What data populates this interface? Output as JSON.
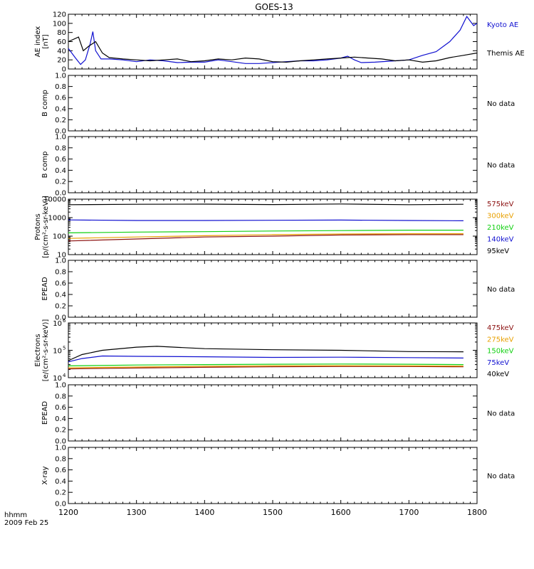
{
  "title": "GOES-13",
  "time_axis": {
    "tick_labels": [
      "1200",
      "1300",
      "1400",
      "1500",
      "1600",
      "1700",
      "1800"
    ],
    "range": [
      1200,
      1800
    ],
    "label_line1": "hhmm",
    "label_line2": "2009 Feb 25"
  },
  "colors": {
    "axes": "#000000",
    "blue": "#1010d0",
    "black": "#000000",
    "red": "#8b1010",
    "orange": "#e8a000",
    "green": "#10d010"
  },
  "chart_data": [
    {
      "type": "line",
      "ylabel": "AE index",
      "ylabel2": "[nT]",
      "ylim": [
        0,
        120
      ],
      "yticks": [
        "0",
        "20",
        "40",
        "60",
        "80",
        "100",
        "120"
      ],
      "series": [
        {
          "name": "Kyoto AE",
          "color": "#1010d0",
          "x": [
            1200,
            1210,
            1218,
            1225,
            1232,
            1236,
            1240,
            1248,
            1260,
            1280,
            1300,
            1320,
            1340,
            1360,
            1380,
            1400,
            1420,
            1440,
            1460,
            1480,
            1500,
            1520,
            1540,
            1560,
            1580,
            1600,
            1610,
            1620,
            1630,
            1650,
            1680,
            1700,
            1720,
            1740,
            1760,
            1775,
            1785,
            1795,
            1800
          ],
          "y": [
            45,
            25,
            10,
            20,
            55,
            82,
            40,
            22,
            22,
            20,
            16,
            20,
            18,
            14,
            15,
            15,
            20,
            16,
            12,
            12,
            14,
            16,
            18,
            18,
            20,
            24,
            28,
            20,
            14,
            15,
            18,
            20,
            30,
            38,
            60,
            85,
            115,
            95,
            100
          ]
        },
        {
          "name": "Themis AE",
          "color": "#000000",
          "x": [
            1200,
            1215,
            1222,
            1230,
            1240,
            1250,
            1260,
            1280,
            1300,
            1320,
            1340,
            1360,
            1380,
            1400,
            1420,
            1440,
            1460,
            1480,
            1500,
            1520,
            1540,
            1560,
            1580,
            1600,
            1620,
            1640,
            1660,
            1680,
            1700,
            1720,
            1740,
            1760,
            1780,
            1800
          ],
          "y": [
            60,
            70,
            40,
            50,
            60,
            35,
            25,
            22,
            20,
            18,
            20,
            22,
            16,
            18,
            22,
            20,
            24,
            22,
            16,
            15,
            18,
            20,
            22,
            24,
            26,
            24,
            22,
            18,
            20,
            15,
            18,
            25,
            30,
            35
          ]
        }
      ]
    },
    {
      "type": "line",
      "ylabel": "B comp",
      "ylim": [
        0,
        1
      ],
      "yticks": [
        "0.0",
        "0.2",
        "0.4",
        "0.6",
        "0.8",
        "1.0"
      ],
      "note": "No data",
      "series": []
    },
    {
      "type": "line",
      "ylabel": "B comp",
      "ylim": [
        0,
        1
      ],
      "yticks": [
        "0.0",
        "0.2",
        "0.4",
        "0.6",
        "0.8",
        "1.0"
      ],
      "note": "No data",
      "series": []
    },
    {
      "type": "line",
      "ylabel": "Protons",
      "ylabel2": "[p/(cm²-s-sr-keV)]",
      "log_scale": true,
      "ylim": [
        10,
        10000
      ],
      "yticks": [
        "10",
        "100",
        "1000",
        "10000"
      ],
      "series": [
        {
          "name": "575keV",
          "color": "#8b1010",
          "x": [
            1200,
            1300,
            1400,
            1500,
            1600,
            1700,
            1780
          ],
          "y": [
            55,
            70,
            90,
            100,
            115,
            120,
            120
          ]
        },
        {
          "name": "300keV",
          "color": "#e8a000",
          "x": [
            1200,
            1300,
            1400,
            1500,
            1600,
            1700,
            1780
          ],
          "y": [
            75,
            90,
            105,
            120,
            130,
            135,
            135
          ]
        },
        {
          "name": "210keV",
          "color": "#10d010",
          "x": [
            1200,
            1300,
            1400,
            1500,
            1600,
            1700,
            1780
          ],
          "y": [
            150,
            165,
            175,
            190,
            200,
            210,
            210
          ]
        },
        {
          "name": "140keV",
          "color": "#1010d0",
          "x": [
            1200,
            1300,
            1400,
            1500,
            1600,
            1700,
            1780
          ],
          "y": [
            750,
            700,
            700,
            720,
            740,
            700,
            680
          ]
        },
        {
          "name": "95keV",
          "color": "#000000",
          "x": [
            1200,
            1300,
            1400,
            1500,
            1600,
            1700,
            1780
          ],
          "y": [
            5000,
            5300,
            5400,
            5100,
            5500,
            5000,
            5300
          ]
        }
      ]
    },
    {
      "type": "line",
      "ylabel": "EPEAD",
      "ylim": [
        0,
        1
      ],
      "yticks": [
        "0.0",
        "0.2",
        "0.4",
        "0.6",
        "0.8",
        "1.0"
      ],
      "note": "No data",
      "series": []
    },
    {
      "type": "line",
      "ylabel": "Electrons",
      "ylabel2": "[e/(cm²-s-sr-keV)]",
      "log_scale": true,
      "ylim": [
        10000,
        1000000
      ],
      "ytick_exponents": [
        "4",
        "5",
        "6"
      ],
      "series": [
        {
          "name": "475keV",
          "color": "#8b1010",
          "x": [
            1200,
            1300,
            1400,
            1500,
            1600,
            1700,
            1780
          ],
          "y": [
            21000,
            22500,
            24000,
            25000,
            25500,
            25500,
            25000
          ]
        },
        {
          "name": "275keV",
          "color": "#e8a000",
          "x": [
            1200,
            1300,
            1400,
            1500,
            1600,
            1700,
            1780
          ],
          "y": [
            23000,
            24500,
            26000,
            27000,
            27500,
            27000,
            26500
          ]
        },
        {
          "name": "150keV",
          "color": "#10d010",
          "x": [
            1200,
            1300,
            1400,
            1500,
            1600,
            1700,
            1780
          ],
          "y": [
            27000,
            29000,
            30000,
            31000,
            31500,
            31000,
            30000
          ]
        },
        {
          "name": "75keV",
          "color": "#1010d0",
          "x": [
            1200,
            1220,
            1250,
            1300,
            1400,
            1500,
            1600,
            1700,
            1780
          ],
          "y": [
            38000,
            50000,
            62000,
            60000,
            58000,
            55000,
            56000,
            54000,
            52000
          ]
        },
        {
          "name": "40keV",
          "color": "#000000",
          "x": [
            1200,
            1220,
            1250,
            1300,
            1330,
            1400,
            1500,
            1600,
            1700,
            1780
          ],
          "y": [
            42000,
            70000,
            100000,
            130000,
            140000,
            115000,
            105000,
            100000,
            90000,
            88000
          ]
        }
      ]
    },
    {
      "type": "line",
      "ylabel": "EPEAD",
      "ylim": [
        0,
        1
      ],
      "yticks": [
        "0.0",
        "0.2",
        "0.4",
        "0.6",
        "0.8",
        "1.0"
      ],
      "note": "No data",
      "series": []
    },
    {
      "type": "line",
      "ylabel": "X-ray",
      "ylim": [
        0,
        1
      ],
      "yticks": [
        "0.0",
        "0.2",
        "0.4",
        "0.6",
        "0.8",
        "1.0"
      ],
      "note": "No data",
      "series": []
    }
  ]
}
